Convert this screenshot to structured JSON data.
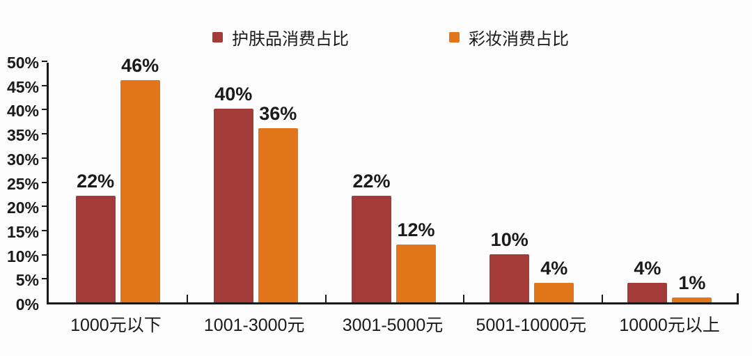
{
  "chart_data": {
    "type": "bar",
    "title": "",
    "categories": [
      "1000元以下",
      "1001-3000元",
      "3001-5000元",
      "5001-10000元",
      "10000元以上"
    ],
    "series": [
      {
        "name": "护肤品消费占比",
        "color": "#A33B39",
        "values": [
          22,
          40,
          22,
          10,
          4
        ]
      },
      {
        "name": "彩妆消费占比",
        "color": "#E2761B",
        "values": [
          46,
          36,
          12,
          4,
          1
        ]
      }
    ],
    "value_labels": [
      [
        "22%",
        "40%",
        "22%",
        "10%",
        "4%"
      ],
      [
        "46%",
        "36%",
        "12%",
        "4%",
        "1%"
      ]
    ],
    "ylabel": "",
    "xlabel": "",
    "ylim": [
      0,
      50
    ],
    "ytick_step": 5,
    "ytick_labels": [
      "0%",
      "5%",
      "10%",
      "15%",
      "20%",
      "25%",
      "30%",
      "35%",
      "40%",
      "45%",
      "50%"
    ],
    "grid": false,
    "legend_position": "top"
  },
  "colors": {
    "axis": "#1a1a1a",
    "text": "#1a1a1a",
    "background": "#fdfdfd",
    "series1": "#A33B39",
    "series2": "#E2761B"
  }
}
